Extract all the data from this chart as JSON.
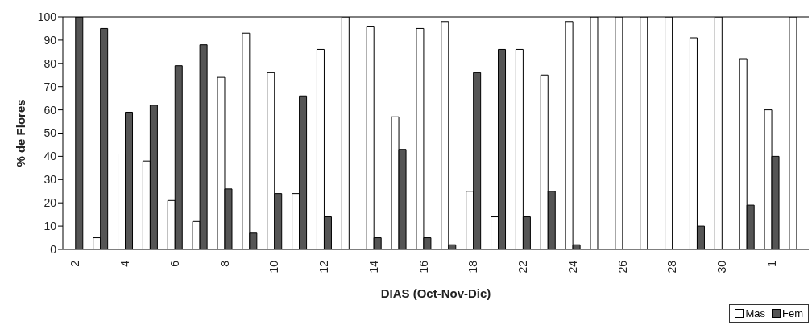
{
  "chart_data": {
    "type": "bar",
    "xlabel": "DIAS (Oct-Nov-Dic)",
    "ylabel": "% de Flores",
    "categories": [
      "2",
      null,
      "4",
      null,
      "6",
      null,
      "8",
      null,
      "10",
      null,
      "12",
      null,
      "14",
      null,
      "16",
      null,
      "18",
      null,
      "22",
      null,
      "24",
      null,
      "26",
      null,
      "28",
      null,
      "30",
      null,
      "1",
      null
    ],
    "series": [
      {
        "name": "Mas",
        "color": "#ffffff",
        "values": [
          0,
          5,
          41,
          38,
          21,
          12,
          74,
          93,
          76,
          24,
          86,
          100,
          96,
          57,
          95,
          98,
          25,
          14,
          86,
          75,
          98,
          100,
          100,
          100,
          100,
          91,
          100,
          82,
          60,
          100
        ]
      },
      {
        "name": "Fem",
        "color": "#555555",
        "values": [
          100,
          95,
          59,
          62,
          79,
          88,
          26,
          7,
          24,
          66,
          14,
          0,
          5,
          43,
          5,
          2,
          76,
          86,
          14,
          25,
          2,
          0,
          0,
          0,
          0,
          10,
          0,
          19,
          40,
          0
        ]
      }
    ],
    "ylim": [
      0,
      100
    ],
    "yticks": [
      0,
      10,
      20,
      30,
      40,
      50,
      60,
      70,
      80,
      90,
      100
    ],
    "grid": false,
    "legend": "bottom right"
  }
}
